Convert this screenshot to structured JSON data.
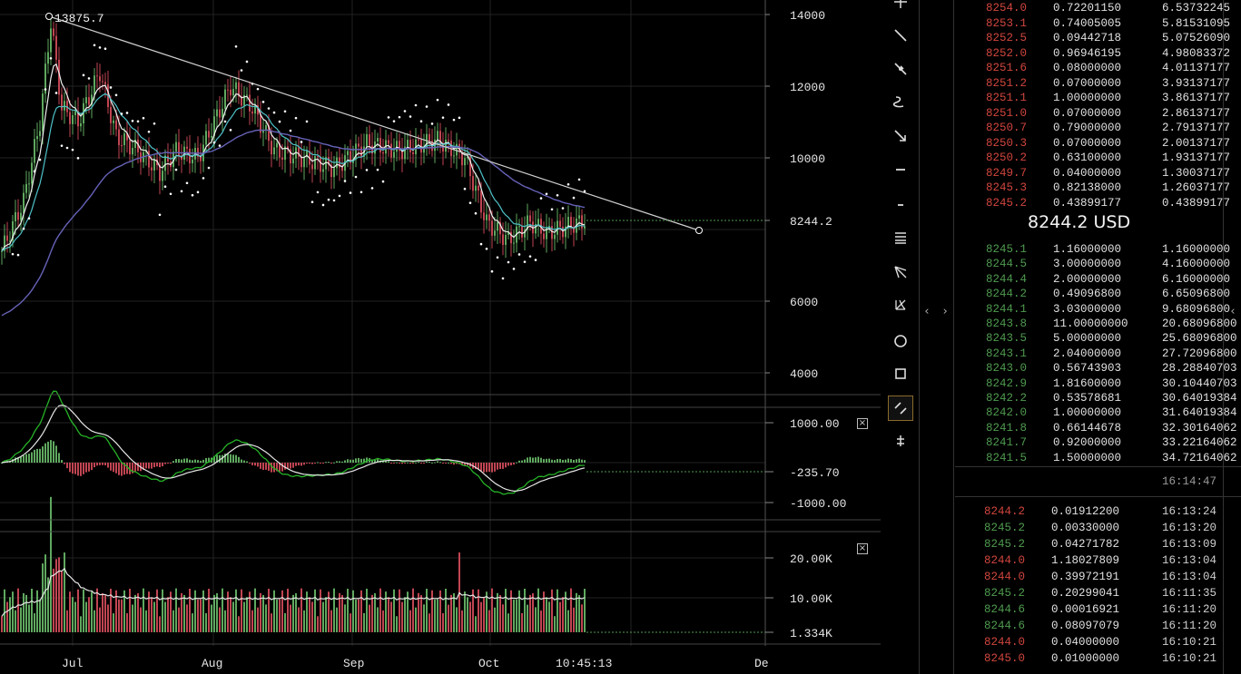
{
  "colors": {
    "up": "#5fa85f",
    "down": "#c04552",
    "ask_price": "#d0453e",
    "bid_price": "#4f9a4f",
    "ema_fast": "#f0f0f0",
    "ema_mid": "#4fc2c8",
    "ema_slow": "#6662b8",
    "trendline": "#cfcfcf",
    "macd": "#26b226",
    "signal": "#e6e6e6"
  },
  "chart": {
    "high_annotation": "13875.7",
    "price_axis": [
      "14000",
      "12000",
      "10000",
      "8244.2",
      "6000",
      "4000"
    ],
    "last_price_label": "8244.2",
    "time_axis": [
      "Jul",
      "Aug",
      "Sep",
      "Oct",
      "10:45:13",
      "De"
    ],
    "macd_axis": [
      "1000.00",
      "-235.70",
      "-1000.00"
    ],
    "volume_axis": [
      "20.00K",
      "10.00K",
      "1.334K"
    ],
    "close_label": "×"
  },
  "chart_data": {
    "type": "candlestick",
    "price_ticks": [
      14000,
      12000,
      10000,
      8000,
      6000,
      4000
    ],
    "last_price": 8244.2,
    "high": 13875.7,
    "macd_value": -235.7,
    "volume_last": 1334
  },
  "toolbar": {
    "tools": [
      {
        "name": "crosshair-icon"
      },
      {
        "name": "trend-line-icon"
      },
      {
        "name": "arrow-line-icon"
      },
      {
        "name": "curve-icon"
      },
      {
        "name": "arrow-down-icon"
      },
      {
        "name": "horizontal-line-icon"
      },
      {
        "name": "vertical-line-icon"
      },
      {
        "name": "fib-lines-icon"
      },
      {
        "name": "pitchfork-icon"
      },
      {
        "name": "gann-icon"
      },
      {
        "name": "circle-icon"
      },
      {
        "name": "rectangle-icon"
      },
      {
        "name": "parallel-channel-icon"
      },
      {
        "name": "anchor-icon"
      }
    ],
    "collapse_left": "‹",
    "collapse_right": "›"
  },
  "orderbook": {
    "asks": [
      {
        "price": "8254.0",
        "amount": "0.72201150",
        "total": "6.53732245"
      },
      {
        "price": "8253.1",
        "amount": "0.74005005",
        "total": "5.81531095"
      },
      {
        "price": "8252.5",
        "amount": "0.09442718",
        "total": "5.07526090"
      },
      {
        "price": "8252.0",
        "amount": "0.96946195",
        "total": "4.98083372"
      },
      {
        "price": "8251.6",
        "amount": "0.08000000",
        "total": "4.01137177"
      },
      {
        "price": "8251.2",
        "amount": "0.07000000",
        "total": "3.93137177"
      },
      {
        "price": "8251.1",
        "amount": "1.00000000",
        "total": "3.86137177"
      },
      {
        "price": "8251.0",
        "amount": "0.07000000",
        "total": "2.86137177"
      },
      {
        "price": "8250.7",
        "amount": "0.79000000",
        "total": "2.79137177"
      },
      {
        "price": "8250.3",
        "amount": "0.07000000",
        "total": "2.00137177"
      },
      {
        "price": "8250.2",
        "amount": "0.63100000",
        "total": "1.93137177"
      },
      {
        "price": "8249.7",
        "amount": "0.04000000",
        "total": "1.30037177"
      },
      {
        "price": "8245.3",
        "amount": "0.82138000",
        "total": "1.26037177"
      },
      {
        "price": "8245.2",
        "amount": "0.43899177",
        "total": "0.43899177"
      }
    ],
    "mid_price": "8244.2 USD",
    "bids": [
      {
        "price": "8245.1",
        "amount": "1.16000000",
        "total": "1.16000000"
      },
      {
        "price": "8244.5",
        "amount": "3.00000000",
        "total": "4.16000000"
      },
      {
        "price": "8244.4",
        "amount": "2.00000000",
        "total": "6.16000000"
      },
      {
        "price": "8244.2",
        "amount": "0.49096800",
        "total": "6.65096800"
      },
      {
        "price": "8244.1",
        "amount": "3.03000000",
        "total": "9.68096800"
      },
      {
        "price": "8243.8",
        "amount": "11.00000000",
        "total": "20.68096800"
      },
      {
        "price": "8243.5",
        "amount": "5.00000000",
        "total": "25.68096800"
      },
      {
        "price": "8243.1",
        "amount": "2.04000000",
        "total": "27.72096800"
      },
      {
        "price": "8243.0",
        "amount": "0.56743903",
        "total": "28.28840703"
      },
      {
        "price": "8242.9",
        "amount": "1.81600000",
        "total": "30.10440703"
      },
      {
        "price": "8242.2",
        "amount": "0.53578681",
        "total": "30.64019384"
      },
      {
        "price": "8242.0",
        "amount": "1.00000000",
        "total": "31.64019384"
      },
      {
        "price": "8241.8",
        "amount": "0.66144678",
        "total": "32.30164062"
      },
      {
        "price": "8241.7",
        "amount": "0.92000000",
        "total": "33.22164062"
      },
      {
        "price": "8241.5",
        "amount": "1.50000000",
        "total": "34.72164062"
      }
    ],
    "timestamp": "16:14:47"
  },
  "trades": [
    {
      "price": "8244.2",
      "amount": "0.01912200",
      "time": "16:13:24",
      "side": "sell"
    },
    {
      "price": "8245.2",
      "amount": "0.00330000",
      "time": "16:13:20",
      "side": "buy"
    },
    {
      "price": "8245.2",
      "amount": "0.04271782",
      "time": "16:13:09",
      "side": "buy"
    },
    {
      "price": "8244.0",
      "amount": "1.18027809",
      "time": "16:13:04",
      "side": "sell"
    },
    {
      "price": "8244.0",
      "amount": "0.39972191",
      "time": "16:13:04",
      "side": "sell"
    },
    {
      "price": "8245.2",
      "amount": "0.20299041",
      "time": "16:11:35",
      "side": "buy"
    },
    {
      "price": "8244.6",
      "amount": "0.00016921",
      "time": "16:11:20",
      "side": "buy"
    },
    {
      "price": "8244.6",
      "amount": "0.08097079",
      "time": "16:11:20",
      "side": "buy"
    },
    {
      "price": "8244.0",
      "amount": "0.04000000",
      "time": "16:10:21",
      "side": "sell"
    },
    {
      "price": "8245.0",
      "amount": "0.01000000",
      "time": "16:10:21",
      "side": "sell"
    }
  ]
}
